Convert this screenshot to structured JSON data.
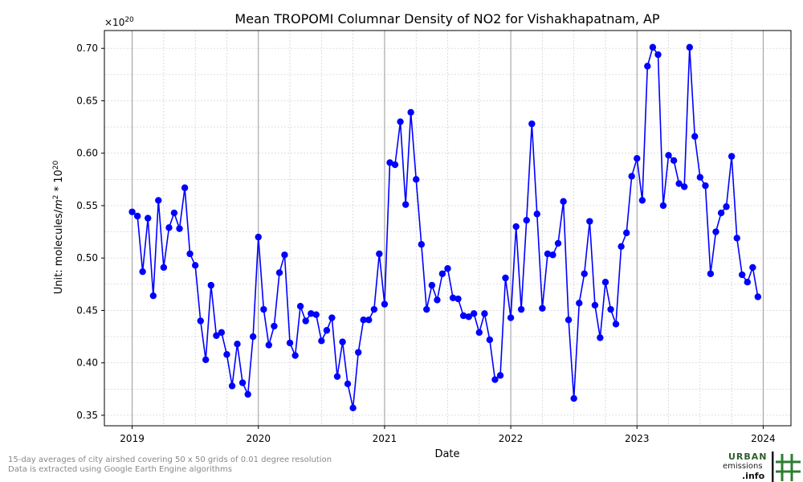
{
  "chart_data": {
    "type": "line",
    "title": "Mean TROPOMI Columnar Density of NO2 for Vishakhapatnam, AP",
    "xlabel": "Date",
    "ylabel_prefix": "Unit: molecules/",
    "ylabel_m": "m",
    "ylabel_exp1": "2",
    "ylabel_mid": " * 10",
    "ylabel_exp2": "20",
    "offset_base": "×10",
    "offset_exp": "20",
    "ylim": [
      0.34,
      0.717
    ],
    "xlim": [
      2018.78,
      2024.22
    ],
    "y_ticks": [
      "0.35",
      "0.40",
      "0.45",
      "0.50",
      "0.55",
      "0.60",
      "0.65",
      "0.70"
    ],
    "x_ticks": [
      "2019",
      "2020",
      "2021",
      "2022",
      "2023",
      "2024"
    ],
    "grid": true,
    "series": [
      {
        "color": "#0000ff",
        "x": [
          2019.0,
          2019.042,
          2019.083,
          2019.125,
          2019.167,
          2019.208,
          2019.25,
          2019.292,
          2019.333,
          2019.375,
          2019.417,
          2019.458,
          2019.5,
          2019.542,
          2019.583,
          2019.625,
          2019.667,
          2019.708,
          2019.75,
          2019.792,
          2019.833,
          2019.875,
          2019.917,
          2019.958,
          2020.0,
          2020.042,
          2020.083,
          2020.125,
          2020.167,
          2020.208,
          2020.25,
          2020.292,
          2020.333,
          2020.375,
          2020.417,
          2020.458,
          2020.5,
          2020.542,
          2020.583,
          2020.625,
          2020.667,
          2020.708,
          2020.75,
          2020.792,
          2020.833,
          2020.875,
          2020.917,
          2020.958,
          2021.0,
          2021.042,
          2021.083,
          2021.125,
          2021.167,
          2021.208,
          2021.25,
          2021.292,
          2021.333,
          2021.375,
          2021.417,
          2021.458,
          2021.5,
          2021.542,
          2021.583,
          2021.625,
          2021.667,
          2021.708,
          2021.75,
          2021.792,
          2021.833,
          2021.875,
          2021.917,
          2021.958,
          2022.0,
          2022.042,
          2022.083,
          2022.125,
          2022.167,
          2022.208,
          2022.25,
          2022.292,
          2022.333,
          2022.375,
          2022.417,
          2022.458,
          2022.5,
          2022.542,
          2022.583,
          2022.625,
          2022.667,
          2022.708,
          2022.75,
          2022.792,
          2022.833,
          2022.875,
          2022.917,
          2022.958,
          2023.0,
          2023.042,
          2023.083,
          2023.125,
          2023.167,
          2023.208,
          2023.25,
          2023.292,
          2023.333,
          2023.375,
          2023.417,
          2023.458,
          2023.5,
          2023.542,
          2023.583,
          2023.625,
          2023.667,
          2023.708,
          2023.75,
          2023.792,
          2023.833,
          2023.875,
          2023.917,
          2023.958
        ],
        "y": [
          0.544,
          0.54,
          0.487,
          0.538,
          0.464,
          0.555,
          0.491,
          0.529,
          0.543,
          0.528,
          0.567,
          0.504,
          0.493,
          0.44,
          0.403,
          0.474,
          0.426,
          0.429,
          0.408,
          0.378,
          0.418,
          0.381,
          0.37,
          0.425,
          0.52,
          0.451,
          0.417,
          0.435,
          0.486,
          0.503,
          0.419,
          0.407,
          0.454,
          0.44,
          0.447,
          0.446,
          0.421,
          0.431,
          0.443,
          0.387,
          0.42,
          0.38,
          0.357,
          0.41,
          0.441,
          0.441,
          0.451,
          0.504,
          0.456,
          0.591,
          0.589,
          0.63,
          0.551,
          0.639,
          0.575,
          0.513,
          0.451,
          0.474,
          0.46,
          0.485,
          0.49,
          0.462,
          0.461,
          0.445,
          0.444,
          0.447,
          0.429,
          0.447,
          0.422,
          0.384,
          0.388,
          0.481,
          0.443,
          0.53,
          0.451,
          0.536,
          0.628,
          0.542,
          0.452,
          0.504,
          0.503,
          0.514,
          0.554,
          0.441,
          0.366,
          0.457,
          0.485,
          0.535,
          0.455,
          0.424,
          0.477,
          0.451,
          0.437,
          0.511,
          0.524,
          0.578,
          0.595,
          0.555,
          0.683,
          0.701,
          0.694,
          0.55,
          0.598,
          0.593,
          0.571,
          0.568,
          0.701,
          0.616,
          0.577,
          0.569,
          0.485,
          0.525,
          0.543,
          0.549,
          0.597,
          0.519,
          0.484,
          0.477,
          0.491,
          0.463
        ]
      }
    ]
  },
  "footnote": {
    "line1": "15-day averages of city airshed covering 50 x 50 grids of 0.01 degree resolution",
    "line2": "Data is extracted using Google Earth Engine algorithms"
  },
  "logo": {
    "line1": "URBAN",
    "line2": "emissions",
    "line3": ".info"
  }
}
